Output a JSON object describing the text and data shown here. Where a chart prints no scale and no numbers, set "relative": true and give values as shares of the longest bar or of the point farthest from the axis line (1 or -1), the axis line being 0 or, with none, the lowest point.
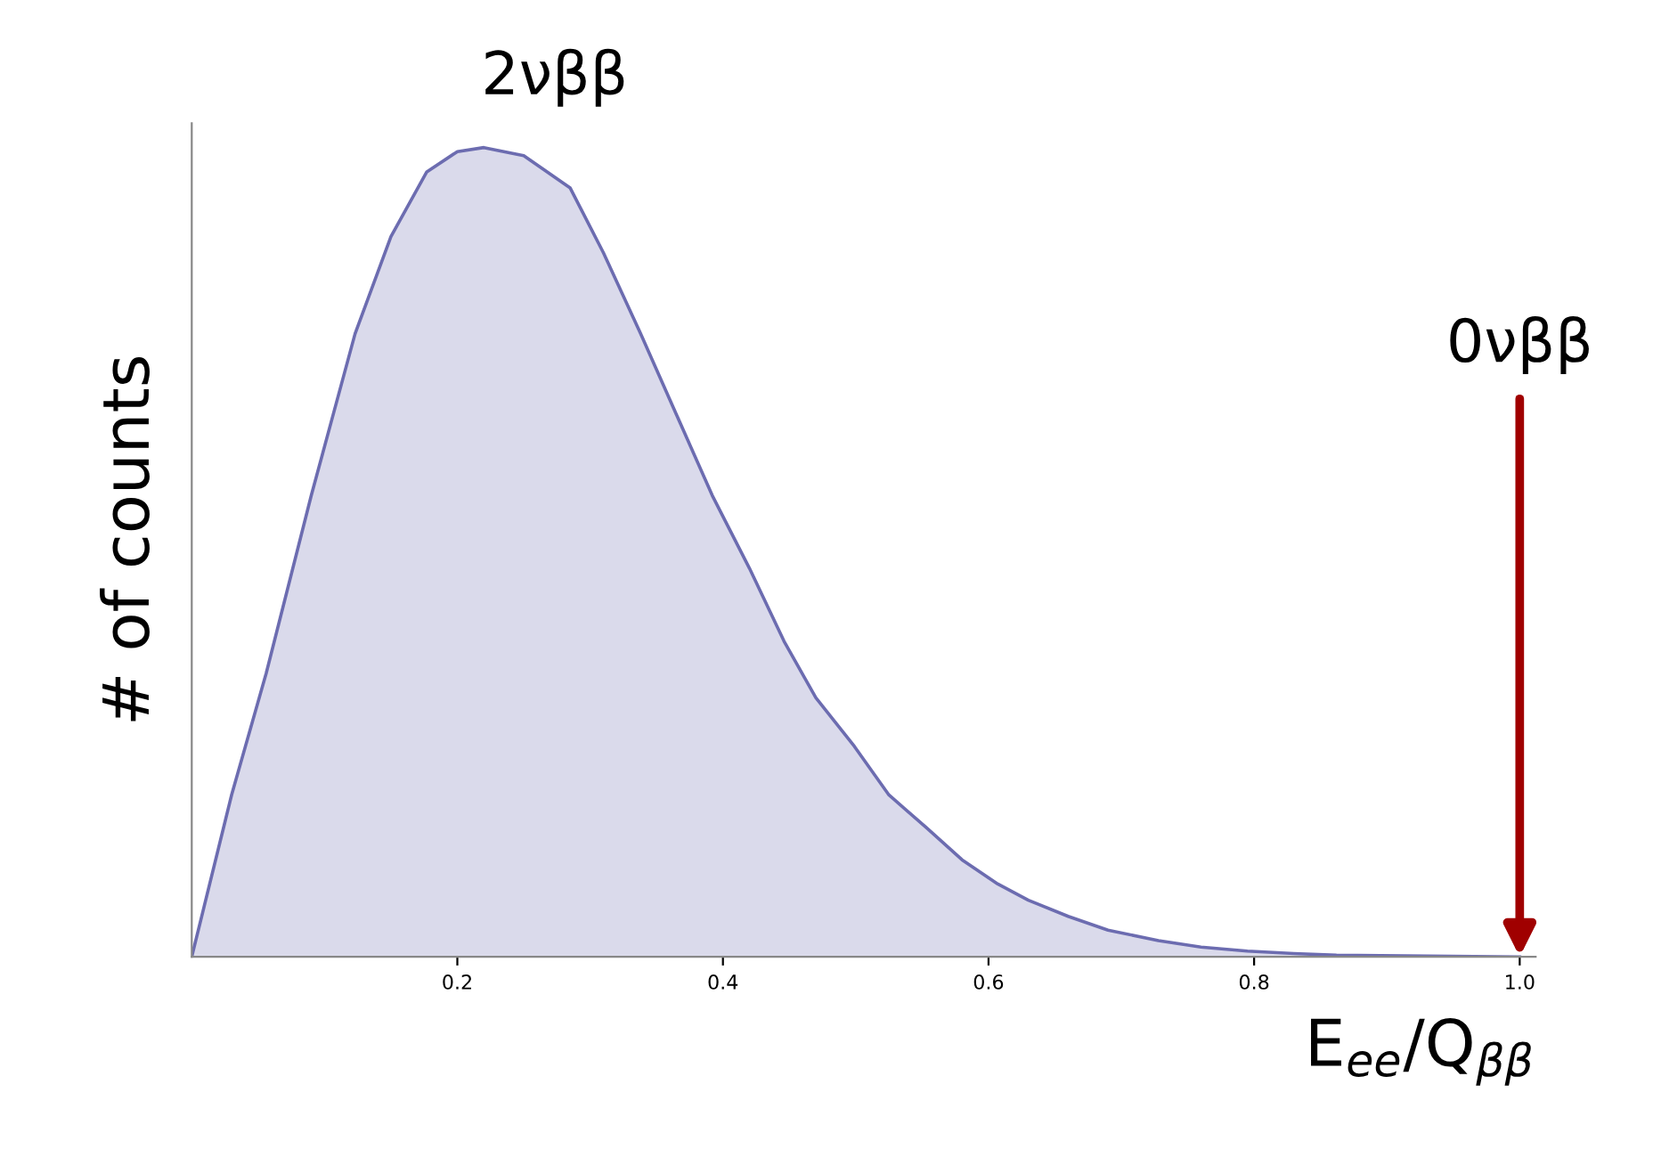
{
  "chart_data": {
    "type": "area",
    "relative": true,
    "xlabel": "E$_{ee}$/Q$_{ββ}$",
    "ylabel": "# of counts",
    "x": [
      0,
      0.03,
      0.056,
      0.09,
      0.123,
      0.15,
      0.177,
      0.2,
      0.22,
      0.25,
      0.285,
      0.31,
      0.338,
      0.365,
      0.392,
      0.42,
      0.446,
      0.47,
      0.499,
      0.525,
      0.553,
      0.58,
      0.607,
      0.63,
      0.66,
      0.69,
      0.728,
      0.76,
      0.795,
      0.83,
      0.862,
      0.93,
      1.0
    ],
    "series": [
      {
        "color": "#6c6cb0",
        "values": [
          0,
          0.2,
          0.35,
          0.57,
          0.77,
          0.89,
          0.97,
          0.995,
          1.0,
          0.99,
          0.95,
          0.87,
          0.77,
          0.67,
          0.57,
          0.48,
          0.39,
          0.32,
          0.26,
          0.2,
          0.16,
          0.12,
          0.09,
          0.07,
          0.05,
          0.033,
          0.02,
          0.012,
          0.007,
          0.004,
          0.002,
          0.001,
          0
        ]
      }
    ],
    "xlim": [
      0,
      1.012
    ],
    "xticks": [
      0.2,
      0.4,
      0.6,
      0.8,
      {
        "value": 1.0,
        "label": "1.0"
      }
    ],
    "annotations": [
      "2νββ",
      {
        "text": "0νββ",
        "x": 1.0,
        "y": 0
      }
    ],
    "grid": false
  }
}
